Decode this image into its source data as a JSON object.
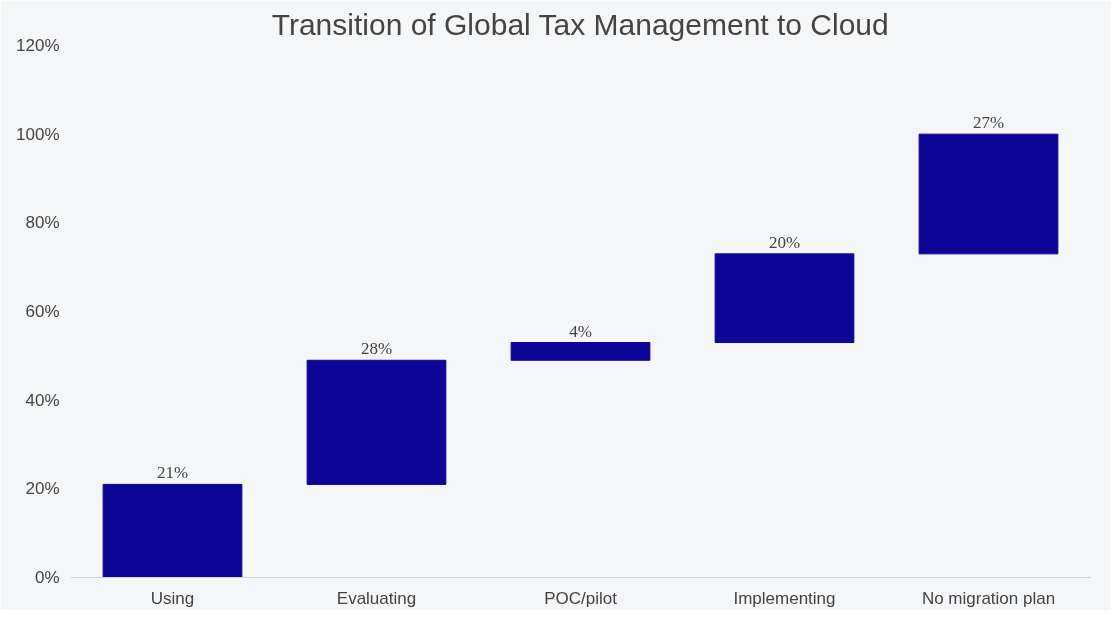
{
  "chart_data": {
    "type": "bar",
    "title": "Transition of Global Tax Management to Cloud",
    "categories": [
      "Using",
      "Evaluating",
      "POC/pilot",
      "Implementing",
      "No migration plan"
    ],
    "values": [
      21,
      28,
      4,
      20,
      27
    ],
    "base": [
      0,
      21,
      49,
      53,
      73
    ],
    "value_labels": [
      "21%",
      "28%",
      "4%",
      "20%",
      "27%"
    ],
    "color": "#0c0596",
    "ylim": [
      0,
      120
    ],
    "yticks": [
      {
        "value": 0,
        "label": "0%"
      },
      {
        "value": 20,
        "label": "20%"
      },
      {
        "value": 40,
        "label": "40%"
      },
      {
        "value": 60,
        "label": "60%"
      },
      {
        "value": 80,
        "label": "80%"
      },
      {
        "value": 100,
        "label": "100%"
      },
      {
        "value": 120,
        "label": "120%"
      }
    ],
    "grid": false
  }
}
